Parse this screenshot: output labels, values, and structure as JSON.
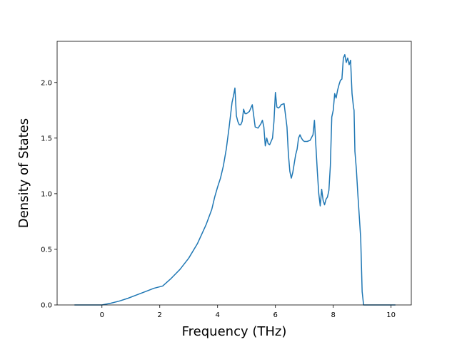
{
  "chart_data": {
    "type": "line",
    "title": "",
    "xlabel": "Frequency (THz)",
    "ylabel": "Density of States",
    "xlim": [
      -1.55,
      10.7
    ],
    "ylim": [
      0.0,
      2.37
    ],
    "xticks": [
      0,
      2,
      4,
      6,
      8,
      10
    ],
    "yticks": [
      0.0,
      0.5,
      1.0,
      1.5,
      2.0
    ],
    "xtick_labels": [
      "0",
      "2",
      "4",
      "6",
      "8",
      "10"
    ],
    "ytick_labels": [
      "0.0",
      "0.5",
      "1.0",
      "1.5",
      "2.0"
    ],
    "grid": false,
    "legend": "none",
    "line_color": "#1f77b4",
    "series": [
      {
        "x": [
          -0.95,
          -0.5,
          0.0,
          0.3,
          0.6,
          0.9,
          1.2,
          1.5,
          1.8,
          2.1,
          2.4,
          2.7,
          3.0,
          3.3,
          3.6,
          3.8,
          3.9,
          4.0,
          4.1,
          4.2,
          4.3,
          4.4,
          4.5,
          4.55,
          4.6,
          4.65,
          4.7,
          4.75,
          4.8,
          4.85,
          4.9,
          4.95,
          5.0,
          5.05,
          5.1,
          5.2,
          5.3,
          5.4,
          5.5,
          5.55,
          5.6,
          5.65,
          5.7,
          5.75,
          5.8,
          5.85,
          5.9,
          5.95,
          6.0,
          6.05,
          6.1,
          6.15,
          6.2,
          6.3,
          6.4,
          6.45,
          6.5,
          6.55,
          6.6,
          6.65,
          6.7,
          6.75,
          6.8,
          6.85,
          6.9,
          6.95,
          7.0,
          7.1,
          7.2,
          7.3,
          7.35,
          7.4,
          7.45,
          7.5,
          7.55,
          7.6,
          7.65,
          7.7,
          7.75,
          7.8,
          7.85,
          7.9,
          7.95,
          8.0,
          8.05,
          8.1,
          8.15,
          8.2,
          8.25,
          8.3,
          8.35,
          8.4,
          8.45,
          8.5,
          8.55,
          8.6,
          8.65,
          8.7,
          8.72,
          8.75,
          8.8,
          8.85,
          8.9,
          8.95,
          9.0,
          9.05,
          9.1,
          9.15,
          9.2,
          9.25,
          9.3,
          9.5,
          10.0,
          10.15
        ],
        "y": [
          0.0,
          0.0,
          0.0,
          0.015,
          0.035,
          0.06,
          0.09,
          0.12,
          0.15,
          0.17,
          0.24,
          0.32,
          0.42,
          0.55,
          0.72,
          0.86,
          0.97,
          1.06,
          1.14,
          1.25,
          1.4,
          1.6,
          1.82,
          1.88,
          1.95,
          1.7,
          1.65,
          1.62,
          1.62,
          1.65,
          1.76,
          1.72,
          1.72,
          1.73,
          1.74,
          1.8,
          1.6,
          1.59,
          1.63,
          1.66,
          1.6,
          1.43,
          1.5,
          1.45,
          1.44,
          1.47,
          1.5,
          1.65,
          1.91,
          1.78,
          1.77,
          1.78,
          1.8,
          1.81,
          1.6,
          1.35,
          1.2,
          1.14,
          1.19,
          1.27,
          1.35,
          1.4,
          1.5,
          1.53,
          1.5,
          1.48,
          1.47,
          1.47,
          1.48,
          1.53,
          1.66,
          1.43,
          1.2,
          1.0,
          0.89,
          1.04,
          0.94,
          0.9,
          0.95,
          0.97,
          1.03,
          1.25,
          1.69,
          1.75,
          1.9,
          1.86,
          1.93,
          1.98,
          2.02,
          2.03,
          2.22,
          2.25,
          2.18,
          2.22,
          2.16,
          2.2,
          1.9,
          1.78,
          1.75,
          1.38,
          1.22,
          1.0,
          0.8,
          0.6,
          0.12,
          0.0,
          0.0,
          0.0,
          0.0,
          0.0,
          0.0,
          0.0,
          0.0,
          0.0
        ]
      }
    ]
  }
}
